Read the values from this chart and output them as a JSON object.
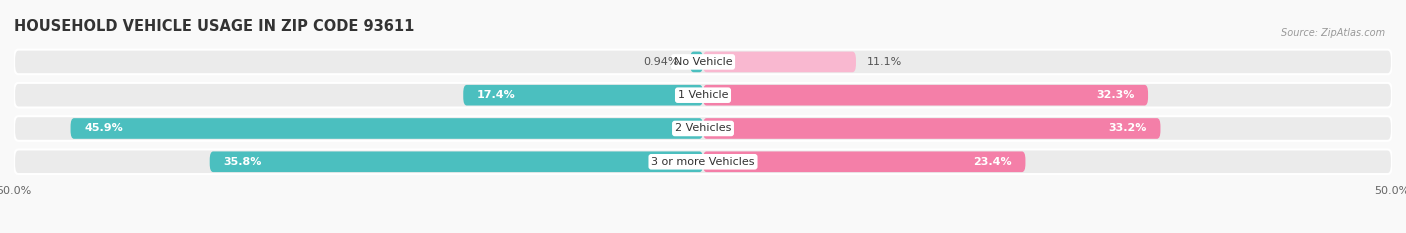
{
  "title": "HOUSEHOLD VEHICLE USAGE IN ZIP CODE 93611",
  "source": "Source: ZipAtlas.com",
  "categories": [
    "No Vehicle",
    "1 Vehicle",
    "2 Vehicles",
    "3 or more Vehicles"
  ],
  "owner_values": [
    0.94,
    17.4,
    45.9,
    35.8
  ],
  "renter_values": [
    11.1,
    32.3,
    33.2,
    23.4
  ],
  "owner_color": "#4bbfbf",
  "renter_color": "#f47fa8",
  "renter_color_light": "#f9b8d0",
  "bg_row_color": "#ebebeb",
  "fig_bg_color": "#f9f9f9",
  "xlim": [
    -50,
    50
  ],
  "xticklabels": [
    "50.0%",
    "50.0%"
  ],
  "title_fontsize": 10.5,
  "label_fontsize": 8.0,
  "tick_fontsize": 8.0,
  "bar_height": 0.62,
  "category_fontsize": 8.0
}
